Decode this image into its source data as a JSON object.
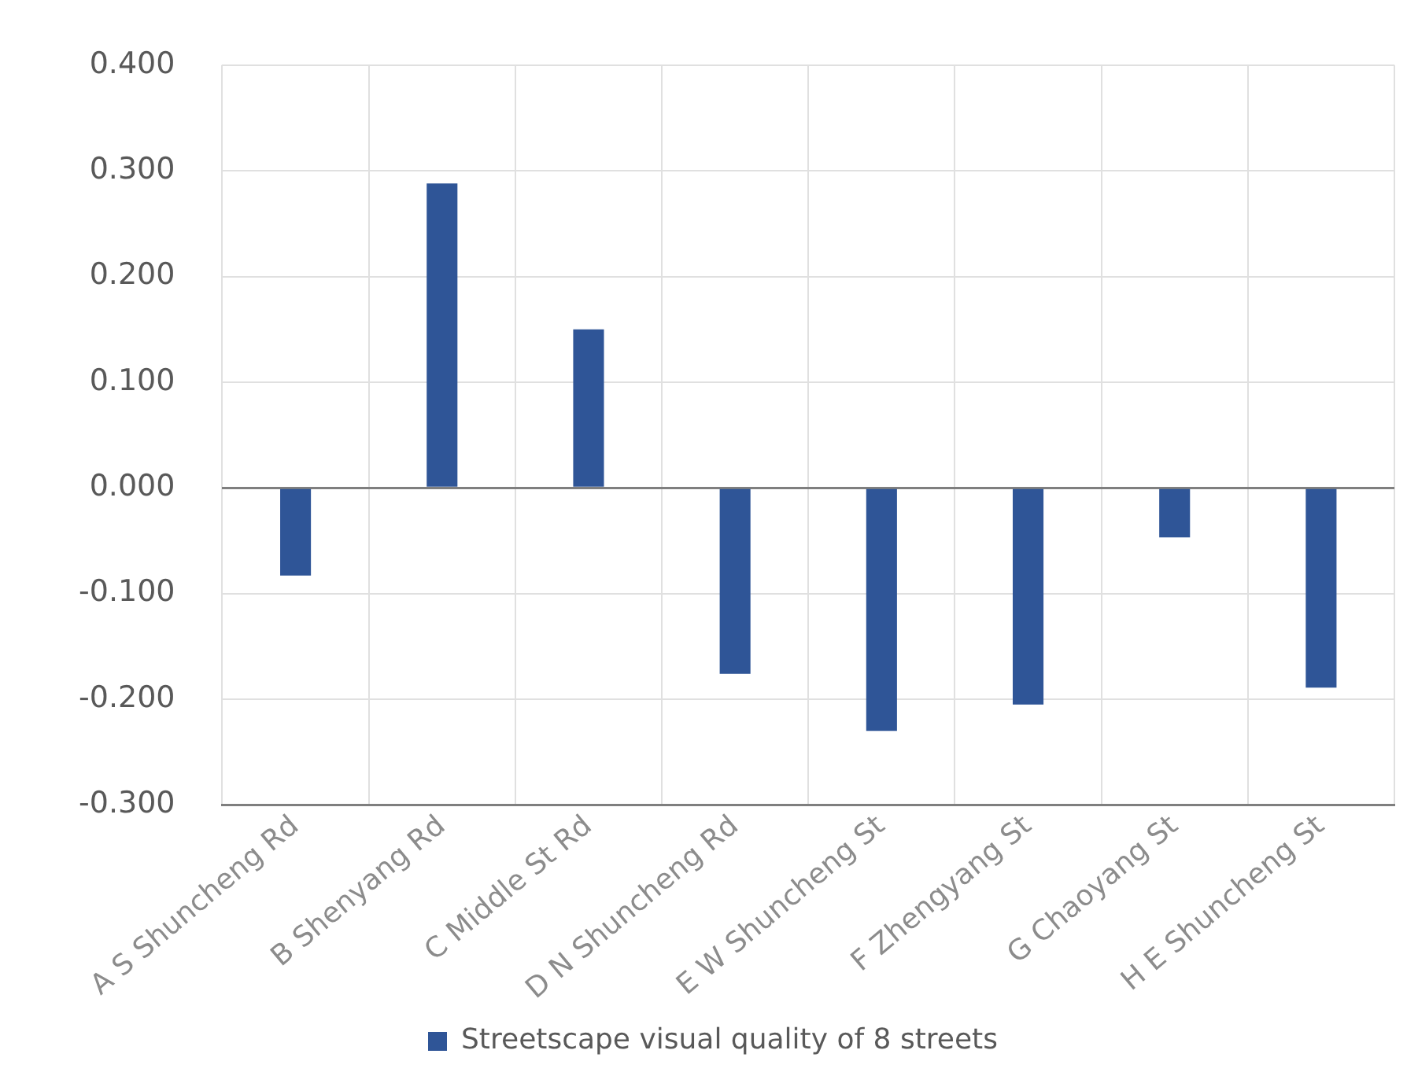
{
  "chart_data": {
    "type": "bar",
    "categories": [
      "A S Shuncheng Rd",
      "B Shenyang Rd",
      "C Middle St Rd",
      "D N Shuncheng Rd",
      "E W Shuncheng St",
      "F Zhengyang St",
      "G Chaoyang St",
      "H E Shuncheng St"
    ],
    "series": [
      {
        "name": "Streetscape visual quality of 8 streets",
        "color": "#2f5597",
        "values": [
          -0.083,
          0.288,
          0.15,
          -0.176,
          -0.23,
          -0.205,
          -0.047,
          -0.189
        ]
      }
    ],
    "ylim": [
      -0.3,
      0.4
    ],
    "yticks": [
      {
        "value": -0.3,
        "label": "-0.300"
      },
      {
        "value": -0.2,
        "label": "-0.200"
      },
      {
        "value": -0.1,
        "label": "-0.100"
      },
      {
        "value": 0,
        "label": "0.000"
      },
      {
        "value": 0.1,
        "label": "0.100"
      },
      {
        "value": 0.2,
        "label": "0.200"
      },
      {
        "value": 0.3,
        "label": "0.300"
      },
      {
        "value": 0.4,
        "label": "0.400"
      }
    ],
    "grid": true,
    "legend": "bottom"
  }
}
